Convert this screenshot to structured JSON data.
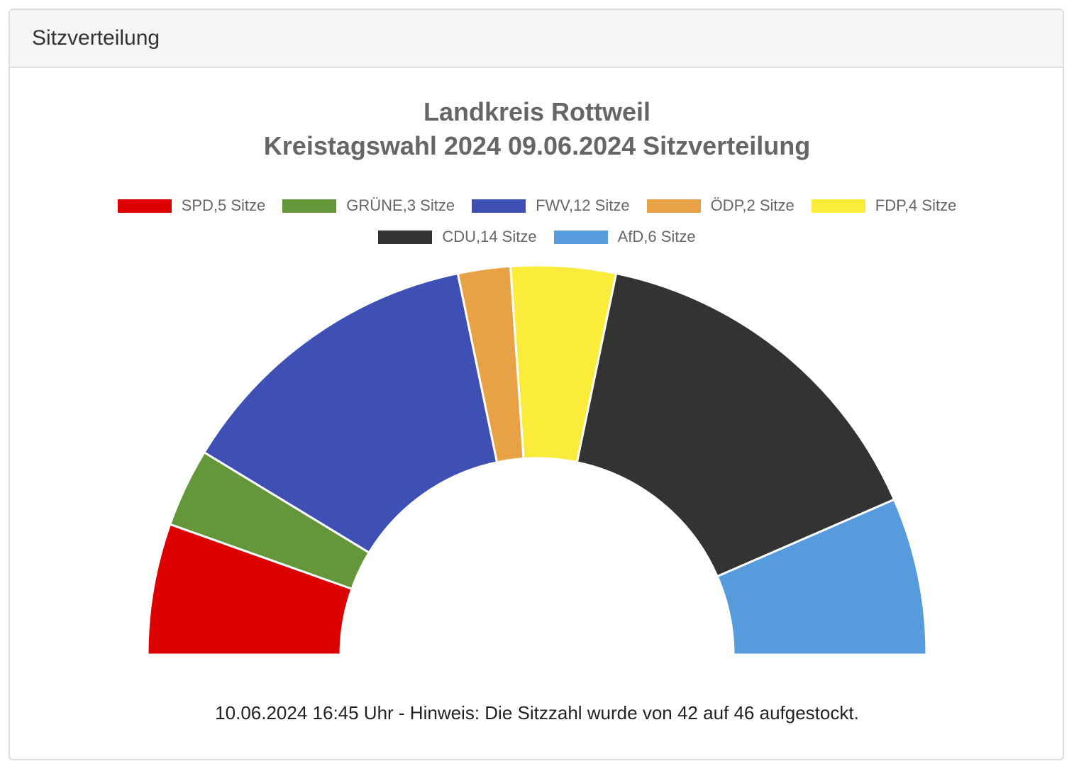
{
  "panel": {
    "title": "Sitzverteilung"
  },
  "chart": {
    "title_line1": "Landkreis Rottweil",
    "title_line2": "Kreistagswahl 2024 09.06.2024 Sitzverteilung",
    "footnote": "10.06.2024 16:45 Uhr - Hinweis: Die Sitzzahl wurde von 42 auf 46 aufgestockt."
  },
  "legend": {
    "row1": [
      {
        "label": "SPD,5 Sitze",
        "color": "#dd0000"
      },
      {
        "label": "GRÜNE,3 Sitze",
        "color": "#64963a"
      },
      {
        "label": "FWV,12 Sitze",
        "color": "#3e50b4"
      },
      {
        "label": "ÖDP,2 Sitze",
        "color": "#e8a245"
      },
      {
        "label": "FDP,4 Sitze",
        "color": "#fbeb3a"
      }
    ],
    "row2": [
      {
        "label": "CDU,14 Sitze",
        "color": "#333333"
      },
      {
        "label": "AfD,6 Sitze",
        "color": "#569bdb"
      }
    ]
  },
  "chart_data": {
    "type": "pie",
    "subtype": "semicircle-donut (parliament seat distribution)",
    "title": "Landkreis Rottweil – Kreistagswahl 2024 09.06.2024 Sitzverteilung",
    "categories": [
      "SPD",
      "GRÜNE",
      "FWV",
      "ÖDP",
      "FDP",
      "CDU",
      "AfD"
    ],
    "values": [
      5,
      3,
      12,
      2,
      4,
      14,
      6
    ],
    "colors": [
      "#dd0000",
      "#64963a",
      "#3e50b4",
      "#e8a245",
      "#fbeb3a",
      "#333333",
      "#569bdb"
    ],
    "unit": "Sitze",
    "total": 46,
    "legend_position": "top",
    "annotation": "10.06.2024 16:45 Uhr - Hinweis: Die Sitzzahl wurde von 42 auf 46 aufgestockt."
  }
}
